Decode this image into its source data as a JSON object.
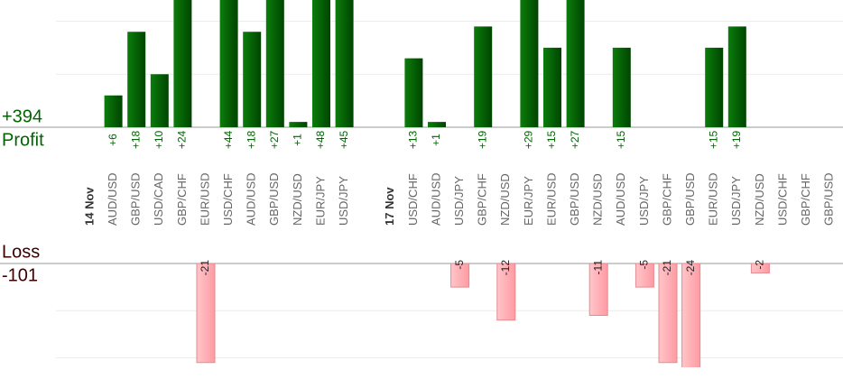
{
  "chart_data": {
    "type": "bar",
    "groups": [
      {
        "label": "14 Nov",
        "categories": [
          "AUD/USD",
          "GBP/USD",
          "USD/CAD",
          "GBP/CHF",
          "EUR/USD",
          "USD/CHF",
          "AUD/USD",
          "GBP/USD",
          "NZD/USD",
          "EUR/JPY",
          "USD/JPY"
        ]
      },
      {
        "label": "17 Nov",
        "categories": [
          "USD/CHF",
          "AUD/USD",
          "USD/JPY",
          "GBP/CHF",
          "NZD/USD",
          "EUR/JPY",
          "EUR/USD",
          "GBP/USD",
          "NZD/USD",
          "AUD/USD",
          "USD/JPY",
          "GBP/CHF",
          "GBP/USD",
          "EUR/USD",
          "USD/JPY",
          "NZD/USD",
          "USD/CHF",
          "GBP/CHF",
          "GBP/USD"
        ]
      }
    ],
    "series": [
      {
        "name": "Profit",
        "color": "#006400",
        "total": 394,
        "total_label": "+394",
        "ylim": [
          0,
          24
        ],
        "yticks": [
          10,
          20
        ],
        "values": [
          [
            6,
            18,
            10,
            24,
            null,
            44,
            18,
            27,
            1,
            48,
            45
          ],
          [
            13,
            1,
            null,
            19,
            null,
            29,
            15,
            27,
            null,
            15,
            null,
            null,
            null,
            15,
            19,
            null,
            null,
            null,
            null
          ]
        ],
        "value_labels": [
          [
            "+6",
            "+18",
            "+10",
            "+24",
            null,
            "+44",
            "+18",
            "+27",
            "+1",
            "+48",
            "+45"
          ],
          [
            "+13",
            "+1",
            null,
            "+19",
            null,
            "+29",
            "+15",
            "+27",
            null,
            "+15",
            null,
            null,
            null,
            "+15",
            "+19",
            null,
            null,
            null,
            null
          ]
        ]
      },
      {
        "name": "Loss",
        "color": "#ffb3b8",
        "total": -101,
        "ylim": [
          -22,
          0
        ],
        "yticks": [
          -20,
          -10
        ],
        "values": [
          [
            null,
            null,
            null,
            null,
            -21,
            null,
            null,
            null,
            null,
            null,
            null
          ],
          [
            null,
            null,
            -5,
            null,
            -12,
            null,
            null,
            null,
            -11,
            null,
            -5,
            -21,
            -24,
            null,
            null,
            -2,
            null,
            null,
            null
          ]
        ]
      }
    ]
  }
}
